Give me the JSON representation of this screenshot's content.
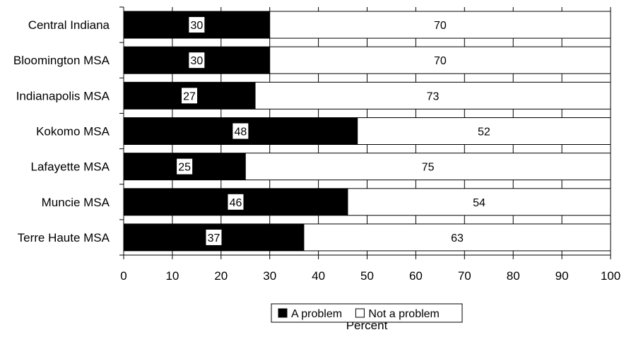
{
  "chart_data": {
    "type": "bar",
    "orientation": "horizontal",
    "stacked": true,
    "categories": [
      "Central Indiana",
      "Bloomington MSA",
      "Indianapolis MSA",
      "Kokomo MSA",
      "Lafayette MSA",
      "Muncie MSA",
      "Terre Haute MSA"
    ],
    "series": [
      {
        "name": "A problem",
        "color": "#000000",
        "values": [
          30,
          30,
          27,
          48,
          25,
          46,
          37
        ]
      },
      {
        "name": "Not a problem",
        "color": "#ffffff",
        "values": [
          70,
          70,
          73,
          52,
          75,
          54,
          63
        ]
      }
    ],
    "xlabel": "Percent",
    "xlim": [
      0,
      100
    ],
    "xticks": [
      "0",
      "10",
      "20",
      "30",
      "40",
      "50",
      "60",
      "70",
      "80",
      "90",
      "100"
    ],
    "grid": true,
    "legend": {
      "position": "bottom",
      "items": [
        "A problem",
        "Not a problem"
      ]
    }
  }
}
